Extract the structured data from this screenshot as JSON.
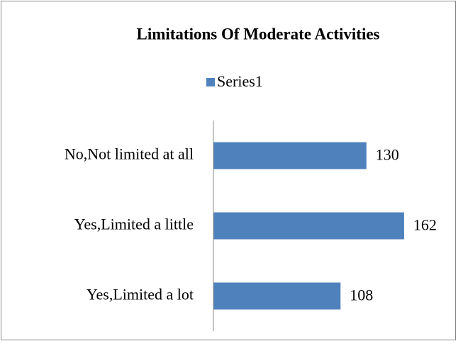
{
  "chart_data": {
    "type": "bar",
    "orientation": "horizontal",
    "title": "Limitations Of Moderate Activities",
    "categories": [
      "No,Not limited at all",
      "Yes,Limited a little",
      "Yes,Limited a lot"
    ],
    "series": [
      {
        "name": "Series1",
        "color": "#4f81bd",
        "values": [
          130,
          162,
          108
        ]
      }
    ],
    "xlim": [
      0,
      200
    ],
    "legend": "top"
  }
}
